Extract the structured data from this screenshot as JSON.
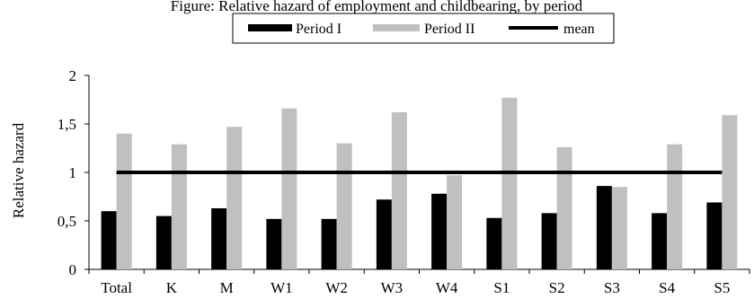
{
  "chart_data": {
    "type": "bar",
    "title": "Figure: Relative hazard of employment and childbearing, by period",
    "xlabel": "",
    "ylabel": "Relative hazard",
    "ylim": [
      0,
      2
    ],
    "yticks": [
      "0",
      "0,5",
      "1",
      "1,5",
      "2"
    ],
    "ytick_values": [
      0,
      0.5,
      1,
      1.5,
      2
    ],
    "categories": [
      "Total",
      "K",
      "M",
      "W1",
      "W2",
      "W3",
      "W4",
      "S1",
      "S2",
      "S3",
      "S4",
      "S5"
    ],
    "series": [
      {
        "name": "Period I",
        "color": "#000000",
        "values": [
          0.6,
          0.55,
          0.63,
          0.52,
          0.52,
          0.72,
          0.78,
          0.53,
          0.58,
          0.86,
          0.58,
          0.69
        ]
      },
      {
        "name": "Period II",
        "color": "#c0c0c0",
        "values": [
          1.4,
          1.29,
          1.47,
          1.66,
          1.3,
          1.62,
          0.97,
          1.77,
          1.26,
          0.85,
          1.29,
          1.59
        ]
      }
    ],
    "reference_line": {
      "name": "mean",
      "value": 1,
      "color": "#000000"
    },
    "legend_position": "top-center",
    "grid": false
  }
}
